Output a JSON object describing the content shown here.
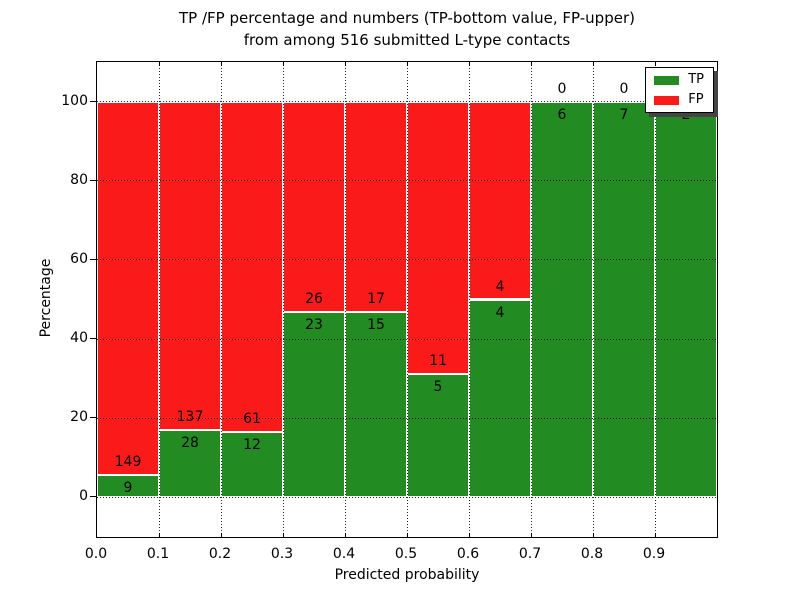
{
  "figure": {
    "title_line1": "TP /FP percentage and numbers (TP-bottom value, FP-upper)",
    "title_line2": "from among 516 submitted L-type contacts",
    "xlabel": "Predicted probability",
    "ylabel": "Percentage"
  },
  "chart_data": {
    "type": "bar",
    "stacked": true,
    "normalized": "each bin stacked to 100 percent",
    "title": "TP /FP percentage and numbers (TP-bottom value, FP-upper) from among 516 submitted L-type contacts",
    "xlabel": "Predicted probability",
    "ylabel": "Percentage",
    "total_contacts": 516,
    "bins": [
      "0.0-0.1",
      "0.1-0.2",
      "0.2-0.3",
      "0.3-0.4",
      "0.4-0.5",
      "0.5-0.6",
      "0.6-0.7",
      "0.7-0.8",
      "0.8-0.9",
      "0.9-1.0"
    ],
    "series": [
      {
        "name": "TP",
        "color": "#228B22",
        "counts": [
          9,
          28,
          12,
          23,
          15,
          5,
          4,
          6,
          7,
          2
        ]
      },
      {
        "name": "FP",
        "color": "#FB1A1A",
        "counts": [
          149,
          137,
          61,
          26,
          17,
          11,
          4,
          0,
          0,
          0
        ]
      }
    ],
    "tp_percent": [
      5.7,
      17.0,
      16.4,
      46.9,
      46.9,
      31.3,
      50.0,
      100.0,
      100.0,
      100.0
    ],
    "xtick_labels": [
      "0.0",
      "0.1",
      "0.2",
      "0.3",
      "0.4",
      "0.5",
      "0.6",
      "0.7",
      "0.8",
      "0.9"
    ],
    "yticks": [
      0,
      20,
      40,
      60,
      80,
      100
    ],
    "xlim": [
      0.0,
      1.0
    ],
    "ylim": [
      -10,
      110
    ],
    "grid": {
      "style": "dotted",
      "color": "#000000",
      "on": true
    },
    "legend": {
      "position": "upper right",
      "entries": [
        {
          "label": "TP",
          "color": "#228B22"
        },
        {
          "label": "FP",
          "color": "#FB1A1A"
        }
      ]
    }
  }
}
